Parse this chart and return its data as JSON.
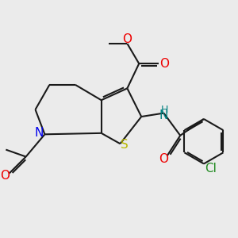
{
  "bg_color": "#ebebeb",
  "bond_color": "#1a1a1a",
  "S_color": "#b8b800",
  "N_color": "#0000ee",
  "O_color": "#ee0000",
  "Cl_color": "#228B22",
  "NH_color": "#008080",
  "lw": 1.5,
  "xlim": [
    0,
    10
  ],
  "ylim": [
    0,
    10
  ]
}
